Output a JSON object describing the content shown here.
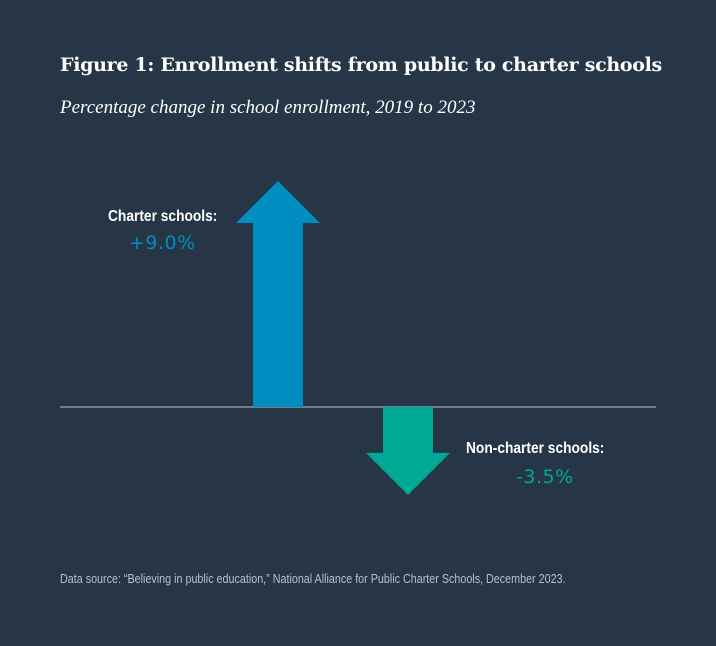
{
  "chart_data": {
    "type": "bar",
    "title": "Figure 1: Enrollment shifts from public to charter schools",
    "subtitle": "Percentage change in school enrollment, 2019 to 2023",
    "categories": [
      "Charter schools:",
      "Non-charter schools:"
    ],
    "values": [
      9.0,
      -3.5
    ],
    "value_labels": [
      "+9.0%",
      "-3.5%"
    ],
    "colors": [
      "#008ec1",
      "#00a896"
    ],
    "unit": "%",
    "grid": false,
    "legend": "none"
  },
  "source": "Data source: “Believing in public education,” National Alliance for Public Charter Schools, December 2023."
}
